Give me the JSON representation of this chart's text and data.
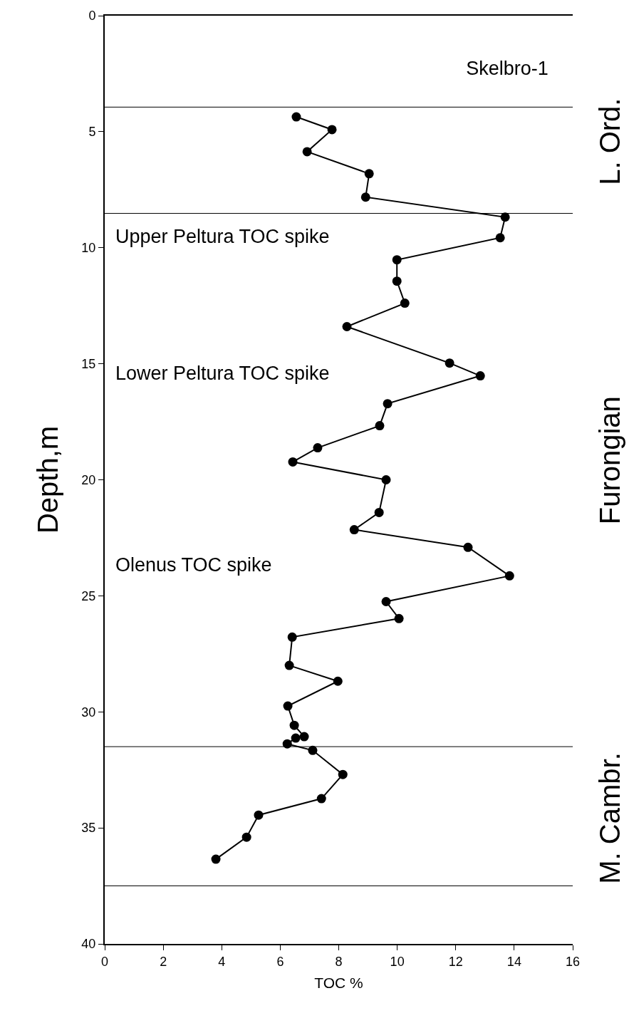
{
  "chart_data": {
    "type": "line",
    "title": "Skelbro-1",
    "xlabel": "TOC %",
    "ylabel": "Depth,m",
    "x": [
      6.55,
      7.77,
      6.92,
      9.04,
      8.92,
      13.69,
      13.52,
      9.99,
      9.99,
      10.26,
      8.28,
      11.79,
      12.84,
      9.67,
      9.4,
      7.28,
      6.43,
      9.62,
      9.38,
      8.53,
      12.42,
      13.84,
      9.62,
      10.06,
      6.41,
      6.31,
      7.97,
      6.26,
      6.48,
      6.82,
      6.53,
      6.24,
      7.11,
      8.14,
      7.41,
      5.26,
      4.85,
      3.8
    ],
    "series": [
      {
        "color": "#000000",
        "values": [
          4.36,
          4.91,
          5.86,
          6.81,
          7.82,
          8.68,
          9.57,
          10.52,
          11.44,
          12.39,
          13.4,
          14.97,
          15.52,
          16.72,
          17.67,
          18.62,
          19.23,
          20.0,
          21.41,
          22.15,
          22.91,
          24.14,
          25.25,
          25.98,
          26.78,
          28.0,
          28.68,
          29.75,
          30.58,
          31.07,
          31.13,
          31.38,
          31.66,
          32.7,
          33.74,
          34.45,
          35.4,
          36.35
        ]
      }
    ],
    "xlim": [
      0,
      16
    ],
    "xticks": [
      0,
      2,
      4,
      6,
      8,
      10,
      12,
      14,
      16
    ],
    "ylim": [
      40,
      0
    ],
    "yticks": [
      0,
      5,
      10,
      15,
      20,
      25,
      30,
      35,
      40
    ],
    "marker": "circle",
    "line_style": "solid",
    "ref_lines": [
      {
        "axis": "y",
        "value": 3.94,
        "color": "#000000"
      },
      {
        "axis": "y",
        "value": 8.52,
        "color": "#000000"
      },
      {
        "axis": "y",
        "value": 31.5,
        "color": "#000000"
      },
      {
        "axis": "y",
        "value": 37.5,
        "color": "#000000"
      }
    ],
    "annotations": [
      "Upper Peltura TOC spike",
      "Lower Peltura TOC spike",
      "Olenus TOC spike",
      "L. Ord.",
      "Furongian",
      "M. Cambr."
    ]
  }
}
